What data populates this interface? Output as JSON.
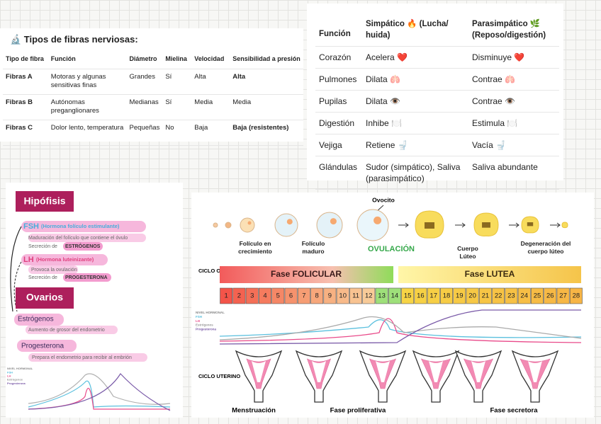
{
  "fibers": {
    "title": "🔬 Tipos de fibras nerviosas:",
    "header": [
      "Tipo de fibra",
      "Función",
      "Diámetro",
      "Mielina",
      "Velocidad",
      "Sensibilidad a presión"
    ],
    "rows": [
      [
        "Fibras A",
        "Motoras y algunas sensitivas finas",
        "Grandes",
        "Sí",
        "Alta",
        "Alta"
      ],
      [
        "Fibras B",
        "Autónomas preganglionares",
        "Medianas",
        "Sí",
        "Media",
        "Media"
      ],
      [
        "Fibras C",
        "Dolor lento, temperatura",
        "Pequeñas",
        "No",
        "Baja",
        "Baja (resistentes)"
      ]
    ]
  },
  "autonomic": {
    "header": [
      "Función",
      "Simpático 🔥 (Lucha/ huida)",
      "Parasimpático 🌿 (Reposo/digestión)"
    ],
    "rows": [
      [
        "Corazón",
        "Acelera ❤️",
        "Disminuye ❤️"
      ],
      [
        "Pulmones",
        "Dilata 🫁",
        "Contrae 🫁"
      ],
      [
        "Pupilas",
        "Dilata 👁️",
        "Contrae 👁️"
      ],
      [
        "Digestión",
        "Inhibe 🍽️",
        "Estimula 🍽️"
      ],
      [
        "Vejiga",
        "Retiene 🚽",
        "Vacía 🚽"
      ],
      [
        "Glándulas",
        "Sudor (simpático), Saliva (parasimpático)",
        "Saliva abundante"
      ]
    ]
  },
  "hypophysis": {
    "title": "Hipófisis",
    "fsh": "FSH",
    "fsh_name": "(Hormona folículo estimulante)",
    "fsh_item_1": "Maduración del folículo que contiene el óvulo",
    "fsh_item_2": {
      "text": "Secreción de",
      "highlight": "ESTRÓGENOS"
    },
    "lh": "LH",
    "lh_name": "(Hormona luteinizante)",
    "lh_item_1": "Provoca la ovulación",
    "lh_item_2": {
      "text": "Secreción de",
      "highlight": "PROGESTERONA"
    },
    "ovaries": "Ovarios",
    "estrogens": "Estrógenos",
    "estrogens_item": "Aumento de grosor del endometrio",
    "progesterone": "Progesterona",
    "progesterone_item": "Prepara el endometrio para recibir al embrión",
    "legend": [
      "NIVEL HORMONAL",
      "FSH",
      "LH",
      "Estrógenos",
      "Progesterona"
    ]
  },
  "cycle": {
    "oocyte": "Ovocito",
    "stages": [
      "Folículo en crecimiento",
      "Folículo maduro",
      "OVULACIÓN",
      "Cuerpo Lúteo",
      "Degeneración del cuerpo lúteo"
    ],
    "ovarian_label": "CICLO OVARICO",
    "follicular": "Fase FOLICULAR",
    "luteal": "Fase LUTEA",
    "days": [
      1,
      2,
      3,
      4,
      5,
      6,
      7,
      8,
      9,
      10,
      11,
      12,
      13,
      14,
      15,
      16,
      17,
      18,
      19,
      20,
      21,
      22,
      23,
      24,
      25,
      26,
      27,
      28
    ],
    "legend": [
      "NIVEL HORMONAL",
      "FSH",
      "LH",
      "Estrógenos",
      "Progesterona"
    ],
    "uterine_label": "CICLO UTERINO",
    "uterine_phases": [
      "Menstruación",
      "Fase proliferativa",
      "Fase secretora"
    ]
  }
}
